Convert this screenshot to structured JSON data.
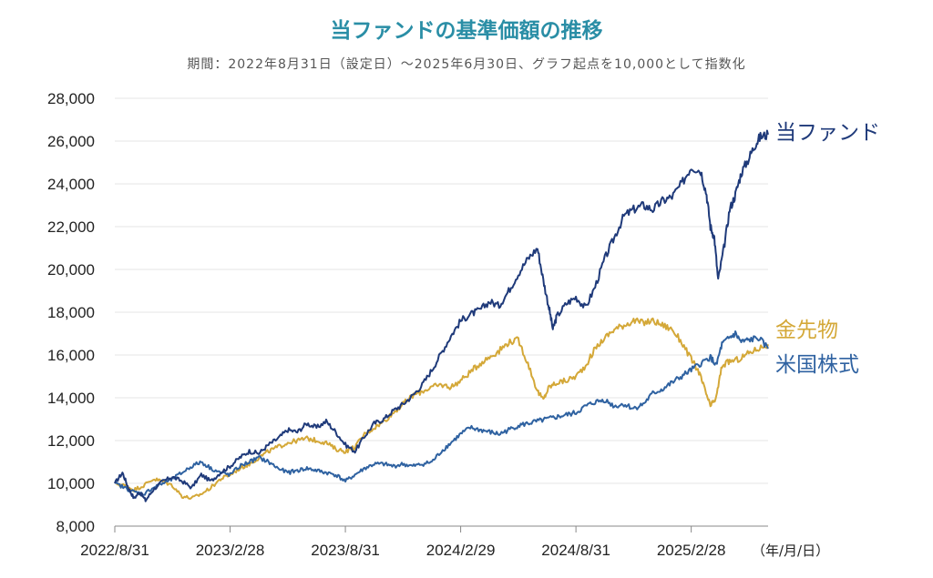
{
  "chart_data": {
    "type": "line",
    "title": "当ファンドの基準価額の推移",
    "subtitle": "期間：2022年8月31日（設定日）～2025年6月30日、グラフ起点を10,000として指数化",
    "x_unit": "（年/月/日）",
    "x_ticks": [
      "2022/8/31",
      "2023/2/28",
      "2023/8/31",
      "2024/2/29",
      "2024/8/31",
      "2025/2/28"
    ],
    "y_ticks": [
      "8,000",
      "10,000",
      "12,000",
      "14,000",
      "16,000",
      "18,000",
      "20,000",
      "22,000",
      "24,000",
      "26,000",
      "28,000"
    ],
    "ylim": [
      8000,
      28000
    ],
    "x_range_months": [
      0,
      34
    ],
    "series": [
      {
        "name": "当ファンド",
        "color": "#1f3a7a",
        "points": [
          [
            0,
            10000
          ],
          [
            0.4,
            10500
          ],
          [
            0.7,
            9800
          ],
          [
            1,
            9300
          ],
          [
            1.3,
            9600
          ],
          [
            1.6,
            9200
          ],
          [
            2,
            9700
          ],
          [
            2.5,
            10100
          ],
          [
            3,
            10300
          ],
          [
            3.5,
            10100
          ],
          [
            4,
            9800
          ],
          [
            4.5,
            10400
          ],
          [
            5,
            10100
          ],
          [
            5.5,
            10500
          ],
          [
            6,
            10800
          ],
          [
            6.5,
            11200
          ],
          [
            7,
            11500
          ],
          [
            7.5,
            11400
          ],
          [
            8,
            11800
          ],
          [
            8.5,
            12100
          ],
          [
            9,
            12500
          ],
          [
            9.5,
            12400
          ],
          [
            10,
            12800
          ],
          [
            10.5,
            12600
          ],
          [
            11,
            12900
          ],
          [
            11.5,
            12400
          ],
          [
            12,
            11800
          ],
          [
            12.5,
            11500
          ],
          [
            13,
            12200
          ],
          [
            13.5,
            12800
          ],
          [
            14,
            13000
          ],
          [
            14.5,
            13400
          ],
          [
            15,
            13700
          ],
          [
            15.5,
            14100
          ],
          [
            16,
            14600
          ],
          [
            16.5,
            15300
          ],
          [
            17,
            16100
          ],
          [
            17.5,
            16900
          ],
          [
            18,
            17600
          ],
          [
            18.5,
            17900
          ],
          [
            19,
            18100
          ],
          [
            19.5,
            18500
          ],
          [
            20,
            18300
          ],
          [
            20.5,
            19000
          ],
          [
            21,
            19800
          ],
          [
            21.5,
            20500
          ],
          [
            22,
            21000
          ],
          [
            22.3,
            19500
          ],
          [
            22.6,
            18200
          ],
          [
            22.8,
            17200
          ],
          [
            23,
            17800
          ],
          [
            23.5,
            18400
          ],
          [
            24,
            18700
          ],
          [
            24.5,
            18200
          ],
          [
            25,
            19200
          ],
          [
            25.5,
            20500
          ],
          [
            26,
            21500
          ],
          [
            26.5,
            22500
          ],
          [
            27,
            22800
          ],
          [
            27.5,
            23000
          ],
          [
            28,
            22800
          ],
          [
            28.5,
            23200
          ],
          [
            29,
            23400
          ],
          [
            29.5,
            24000
          ],
          [
            30,
            24800
          ],
          [
            30.5,
            24600
          ],
          [
            30.8,
            23500
          ],
          [
            31,
            22000
          ],
          [
            31.2,
            21500
          ],
          [
            31.4,
            19500
          ],
          [
            31.7,
            21000
          ],
          [
            32,
            22800
          ],
          [
            32.3,
            23500
          ],
          [
            32.6,
            24500
          ],
          [
            33,
            25200
          ],
          [
            33.3,
            25800
          ],
          [
            33.6,
            26200
          ],
          [
            34,
            26300
          ]
        ]
      },
      {
        "name": "金先物",
        "color": "#d4a838",
        "points": [
          [
            0,
            10000
          ],
          [
            0.5,
            9900
          ],
          [
            1,
            9700
          ],
          [
            1.5,
            9900
          ],
          [
            2,
            10200
          ],
          [
            2.5,
            10100
          ],
          [
            3,
            9900
          ],
          [
            3.5,
            9400
          ],
          [
            4,
            9300
          ],
          [
            4.5,
            9500
          ],
          [
            5,
            9800
          ],
          [
            5.5,
            10200
          ],
          [
            6,
            10400
          ],
          [
            6.5,
            10700
          ],
          [
            7,
            10900
          ],
          [
            7.5,
            11200
          ],
          [
            8,
            11500
          ],
          [
            8.5,
            11700
          ],
          [
            9,
            11900
          ],
          [
            9.5,
            12000
          ],
          [
            10,
            12100
          ],
          [
            10.5,
            12000
          ],
          [
            11,
            11900
          ],
          [
            11.5,
            11600
          ],
          [
            12,
            11500
          ],
          [
            12.5,
            11700
          ],
          [
            13,
            12300
          ],
          [
            13.5,
            12600
          ],
          [
            14,
            12900
          ],
          [
            14.5,
            13300
          ],
          [
            15,
            13700
          ],
          [
            15.5,
            14100
          ],
          [
            16,
            14300
          ],
          [
            16.5,
            14500
          ],
          [
            17,
            14600
          ],
          [
            17.5,
            14500
          ],
          [
            18,
            14800
          ],
          [
            18.5,
            15200
          ],
          [
            19,
            15600
          ],
          [
            19.5,
            15900
          ],
          [
            20,
            16200
          ],
          [
            20.5,
            16600
          ],
          [
            21,
            16700
          ],
          [
            21.5,
            15600
          ],
          [
            22,
            14300
          ],
          [
            22.3,
            13900
          ],
          [
            22.6,
            14500
          ],
          [
            23,
            14700
          ],
          [
            23.5,
            14800
          ],
          [
            24,
            15000
          ],
          [
            24.5,
            15500
          ],
          [
            25,
            16300
          ],
          [
            25.5,
            16800
          ],
          [
            26,
            17200
          ],
          [
            26.5,
            17400
          ],
          [
            27,
            17600
          ],
          [
            27.5,
            17500
          ],
          [
            28,
            17600
          ],
          [
            28.5,
            17400
          ],
          [
            29,
            17200
          ],
          [
            29.5,
            16600
          ],
          [
            30,
            15800
          ],
          [
            30.4,
            15200
          ],
          [
            30.7,
            14400
          ],
          [
            31,
            13600
          ],
          [
            31.3,
            14000
          ],
          [
            31.6,
            15500
          ],
          [
            32,
            15700
          ],
          [
            32.5,
            15800
          ],
          [
            33,
            16100
          ],
          [
            33.5,
            16300
          ],
          [
            34,
            16500
          ]
        ]
      },
      {
        "name": "米国株式",
        "color": "#2f62a1",
        "points": [
          [
            0,
            10000
          ],
          [
            0.5,
            9800
          ],
          [
            1,
            9600
          ],
          [
            1.5,
            9500
          ],
          [
            2,
            9800
          ],
          [
            2.5,
            10000
          ],
          [
            3,
            10200
          ],
          [
            3.5,
            10500
          ],
          [
            4,
            10800
          ],
          [
            4.5,
            11000
          ],
          [
            5,
            10700
          ],
          [
            5.5,
            10500
          ],
          [
            6,
            10400
          ],
          [
            6.5,
            10800
          ],
          [
            7,
            11000
          ],
          [
            7.5,
            11200
          ],
          [
            8,
            11000
          ],
          [
            8.5,
            10700
          ],
          [
            9,
            10500
          ],
          [
            9.5,
            10600
          ],
          [
            10,
            10700
          ],
          [
            10.5,
            10600
          ],
          [
            11,
            10500
          ],
          [
            11.5,
            10400
          ],
          [
            12,
            10100
          ],
          [
            12.5,
            10400
          ],
          [
            13,
            10700
          ],
          [
            13.5,
            10900
          ],
          [
            14,
            10900
          ],
          [
            14.5,
            10800
          ],
          [
            15,
            10900
          ],
          [
            15.5,
            10800
          ],
          [
            16,
            10900
          ],
          [
            16.5,
            11000
          ],
          [
            17,
            11500
          ],
          [
            17.5,
            11900
          ],
          [
            18,
            12300
          ],
          [
            18.5,
            12600
          ],
          [
            19,
            12500
          ],
          [
            19.5,
            12400
          ],
          [
            20,
            12300
          ],
          [
            20.5,
            12500
          ],
          [
            21,
            12700
          ],
          [
            21.5,
            12800
          ],
          [
            22,
            12900
          ],
          [
            22.5,
            13000
          ],
          [
            23,
            13100
          ],
          [
            23.5,
            13200
          ],
          [
            24,
            13300
          ],
          [
            24.5,
            13600
          ],
          [
            25,
            13800
          ],
          [
            25.5,
            13900
          ],
          [
            26,
            13600
          ],
          [
            26.5,
            13700
          ],
          [
            27,
            13500
          ],
          [
            27.5,
            13700
          ],
          [
            28,
            14200
          ],
          [
            28.5,
            14400
          ],
          [
            29,
            14700
          ],
          [
            29.5,
            15000
          ],
          [
            30,
            15300
          ],
          [
            30.5,
            15600
          ],
          [
            31,
            15900
          ],
          [
            31.3,
            15500
          ],
          [
            31.6,
            16500
          ],
          [
            32,
            16800
          ],
          [
            32.3,
            17000
          ],
          [
            32.6,
            16600
          ],
          [
            33,
            16700
          ],
          [
            33.5,
            16800
          ],
          [
            34,
            16300
          ]
        ]
      }
    ]
  }
}
